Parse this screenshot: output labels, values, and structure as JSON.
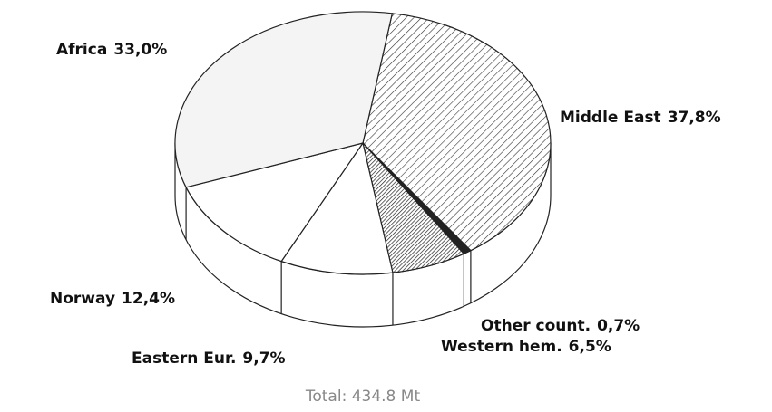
{
  "chart_data": {
    "type": "pie",
    "categories": [
      "Middle East",
      "Other count.",
      "Western hem.",
      "Eastern Eur.",
      "Norway",
      "Africa"
    ],
    "values": [
      37.8,
      0.7,
      6.5,
      9.7,
      12.4,
      33.0
    ],
    "value_labels": [
      "37,8%",
      "0,7%",
      "6,5%",
      "9,7%",
      "12,4%",
      "33,0%"
    ],
    "colors": [
      "hatch",
      "#222222",
      "dense-hatch",
      "#ffffff",
      "#ffffff",
      "#f4f4f4"
    ],
    "annotation": "Total: 434.8 Mt"
  }
}
